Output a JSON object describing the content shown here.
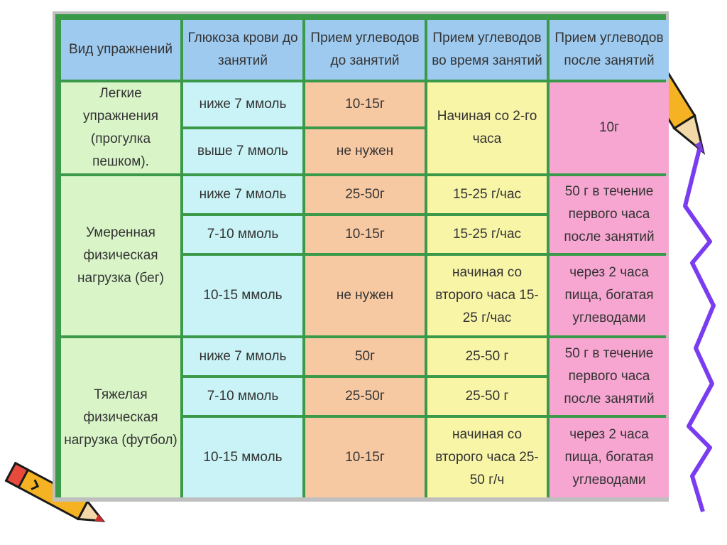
{
  "headers": [
    "Вид упражнений",
    "Глюкоза крови до занятий",
    "Прием углеводов до занятий",
    "Прием углеводов во время занятий",
    "Прием углеводов после занятий"
  ],
  "groups": [
    {
      "exercise": "Легкие упражнения (прогулка пешком).",
      "during_merged": "Начиная со 2-го часа",
      "after_merged": "10г",
      "rows": [
        {
          "glucose": "ниже 7 ммоль",
          "before": "10-15г"
        },
        {
          "glucose": "выше 7 ммоль",
          "before": "не нужен"
        }
      ]
    },
    {
      "exercise": "Умеренная физическая нагрузка (бег)",
      "rows": [
        {
          "glucose": "ниже 7 ммоль",
          "before": "25-50г",
          "during": "15-25 г/час"
        },
        {
          "glucose": "7-10 ммоль",
          "before": "10-15г",
          "during": "15-25 г/час"
        },
        {
          "glucose": "10-15 ммоль",
          "before": "не нужен",
          "during": "начиная со второго часа 15-25 г/час",
          "after": "через 2 часа пища, богатая углеводами"
        }
      ],
      "after_merged": "50 г в течение первого часа после занятий"
    },
    {
      "exercise": "Тяжелая физическая нагрузка (футбол)",
      "rows": [
        {
          "glucose": "ниже 7 ммоль",
          "before": "50г",
          "during": "25-50 г"
        },
        {
          "glucose": "7-10 ммоль",
          "before": "25-50г",
          "during": "25-50 г"
        },
        {
          "glucose": "10-15 ммоль",
          "before": "10-15г",
          "during": "начиная со второго часа 25-50 г/ч",
          "after": "через 2 часа пища, богатая углеводами"
        }
      ],
      "after_merged": "50 г в течение первого часа после занятий"
    }
  ],
  "colors": {
    "header": "#9ecaf0",
    "exercise": "#d9f5c8",
    "glucose": "#c9f3f6",
    "before": "#f7c9a3",
    "during": "#f8f5a7",
    "after": "#f7a6d1",
    "grid": "#3a9a4a"
  },
  "decorations": [
    "pencil-icon",
    "pencil-icon",
    "squiggle-line"
  ]
}
